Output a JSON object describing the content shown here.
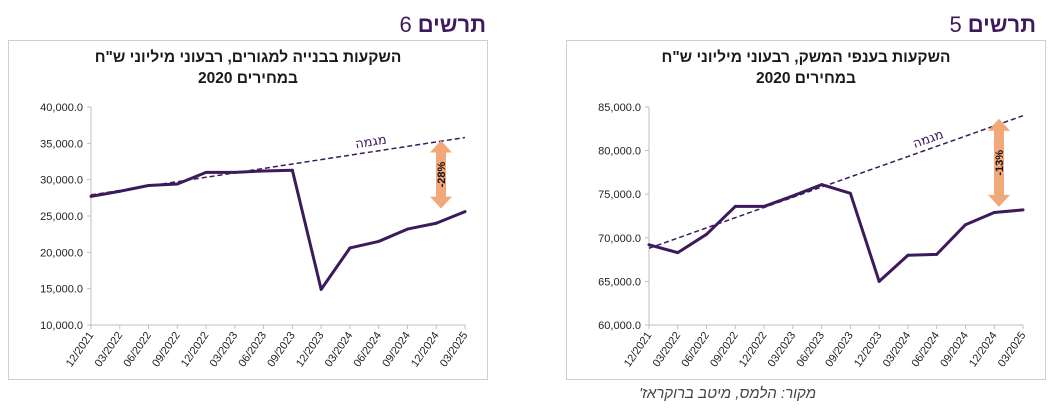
{
  "figures": [
    {
      "label": "תרשים",
      "number": "5",
      "title_line1": "השקעות בענפי המשק, רבעוני מיליוני ש\"ח",
      "title_line2": "במחירים 2020"
    },
    {
      "label": "תרשים",
      "number": "6",
      "title_line1": "השקעות בבנייה למגורים, רבעוני מיליוני ש\"ח",
      "title_line2": "במחירים 2020"
    }
  ],
  "source": "מקור: הלמס, מיטב ברוקראז'",
  "colors": {
    "series": "#3d1a5c",
    "trend": "#3d1a5c",
    "arrow": "#f2a97a",
    "axis": "#bfbfbf"
  },
  "chart_data": [
    {
      "type": "line",
      "title": "השקעות בענפי המשק, רבעוני מיליוני ש\"ח במחירים 2020",
      "x": [
        "12/2021",
        "03/2022",
        "06/2022",
        "09/2022",
        "12/2022",
        "03/2023",
        "06/2023",
        "09/2023",
        "12/2023",
        "03/2024",
        "06/2024",
        "09/2024",
        "12/2024",
        "03/2025"
      ],
      "y_tick_labels": [
        "60,000.0",
        "65,000.0",
        "70,000.0",
        "75,000.0",
        "80,000.0",
        "85,000.0"
      ],
      "ylim": [
        60000,
        85000
      ],
      "series": [
        {
          "values": [
            69200,
            68300,
            70400,
            73600,
            73600,
            74800,
            76100,
            75100,
            65000,
            68000,
            68100,
            71500,
            72900,
            73200
          ]
        },
        {
          "name": "מגמה",
          "style": "dashed",
          "start": 68800,
          "end": 84000
        }
      ],
      "annotation": {
        "text": "-13%",
        "from": 84000,
        "to": 73200,
        "type": "double-arrow"
      },
      "grid": false
    },
    {
      "type": "line",
      "title": "השקעות בבנייה למגורים, רבעוני מיליוני ש\"ח במחירים 2020",
      "x": [
        "12/2021",
        "03/2022",
        "06/2022",
        "09/2022",
        "12/2022",
        "03/2023",
        "06/2023",
        "09/2023",
        "12/2023",
        "03/2024",
        "06/2024",
        "09/2024",
        "12/2024",
        "03/2025"
      ],
      "y_tick_labels": [
        "10,000.0",
        "15,000.0",
        "20,000.0",
        "25,000.0",
        "30,000.0",
        "35,000.0",
        "40,000.0"
      ],
      "ylim": [
        10000,
        40000
      ],
      "series": [
        {
          "values": [
            27700,
            28400,
            29200,
            29400,
            31000,
            31000,
            31200,
            31300,
            14900,
            20600,
            21500,
            23200,
            24000,
            25600
          ]
        },
        {
          "name": "מגמה",
          "style": "dashed",
          "start": 27900,
          "end": 35800
        }
      ],
      "annotation": {
        "text": "-28%",
        "from": 35800,
        "to": 25600,
        "type": "double-arrow"
      },
      "grid": false
    }
  ]
}
